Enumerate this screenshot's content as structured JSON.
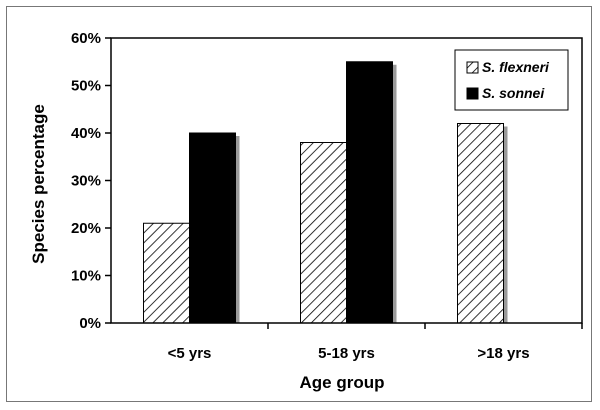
{
  "chart_data": {
    "type": "bar",
    "categories": [
      "<5 yrs",
      "5-18 yrs",
      ">18 yrs"
    ],
    "series": [
      {
        "name": "S. flexneri",
        "values": [
          21,
          38,
          42
        ],
        "pattern": "hatched"
      },
      {
        "name": "S. sonnei",
        "values": [
          40,
          55,
          0
        ],
        "pattern": "solid"
      }
    ],
    "xlabel": "Age group",
    "ylabel": "Species percentage",
    "ylim": [
      0,
      60
    ],
    "yticks": [
      "0%",
      "10%",
      "20%",
      "30%",
      "40%",
      "50%",
      "60%"
    ],
    "grid": false,
    "legend_position": "top-right",
    "colors": {
      "solid": "#000000",
      "hatch": "#000000",
      "shadow": "#9a9a9a",
      "axis": "#000000"
    }
  }
}
